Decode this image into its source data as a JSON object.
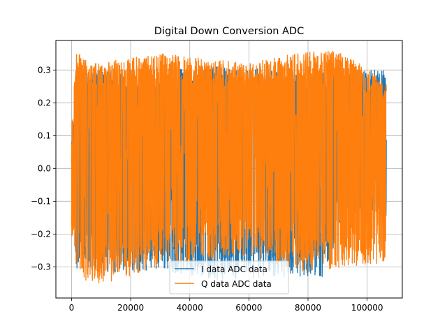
{
  "chart_data": {
    "type": "line",
    "title": "Digital Down Conversion ADC",
    "xlabel": "",
    "ylabel": "",
    "xlim": [
      -5300,
      111900
    ],
    "ylim": [
      -0.395,
      0.39
    ],
    "grid": true,
    "legend_position": "lower-center",
    "x_ticks": [
      0,
      20000,
      40000,
      60000,
      80000,
      100000
    ],
    "y_ticks": [
      -0.3,
      -0.2,
      -0.1,
      0.0,
      0.1,
      0.2,
      0.3
    ],
    "x_tick_labels": [
      "0",
      "20000",
      "40000",
      "60000",
      "80000",
      "100000"
    ],
    "y_tick_labels": [
      "−0.3",
      "−0.2",
      "−0.1",
      "0.0",
      "0.1",
      "0.2",
      "0.3"
    ],
    "series": [
      {
        "name": "I data ADC data",
        "color": "#1f77b4",
        "x_range": [
          0,
          106500
        ],
        "envelope_points": [
          {
            "x": 0,
            "min": -0.02,
            "max": 0.02
          },
          {
            "x": 500,
            "min": -0.18,
            "max": 0.14
          },
          {
            "x": 2000,
            "min": -0.32,
            "max": 0.3
          },
          {
            "x": 10000,
            "min": -0.32,
            "max": 0.3
          },
          {
            "x": 30000,
            "min": -0.31,
            "max": 0.3
          },
          {
            "x": 50000,
            "min": -0.34,
            "max": 0.31
          },
          {
            "x": 70000,
            "min": -0.33,
            "max": 0.3
          },
          {
            "x": 85000,
            "min": -0.33,
            "max": 0.3
          },
          {
            "x": 92000,
            "min": -0.16,
            "max": 0.3
          },
          {
            "x": 106500,
            "min": -0.15,
            "max": 0.3
          }
        ]
      },
      {
        "name": "Q data ADC data",
        "color": "#ff7f0e",
        "x_range": [
          0,
          106500
        ],
        "envelope_points": [
          {
            "x": 0,
            "min": -0.2,
            "max": 0.14
          },
          {
            "x": 1500,
            "min": -0.32,
            "max": 0.36
          },
          {
            "x": 8000,
            "min": -0.36,
            "max": 0.32
          },
          {
            "x": 30000,
            "min": -0.3,
            "max": 0.35
          },
          {
            "x": 60000,
            "min": -0.27,
            "max": 0.32
          },
          {
            "x": 80000,
            "min": -0.32,
            "max": 0.36
          },
          {
            "x": 92000,
            "min": -0.3,
            "max": 0.36
          },
          {
            "x": 106500,
            "min": -0.29,
            "max": 0.26
          }
        ]
      }
    ]
  }
}
